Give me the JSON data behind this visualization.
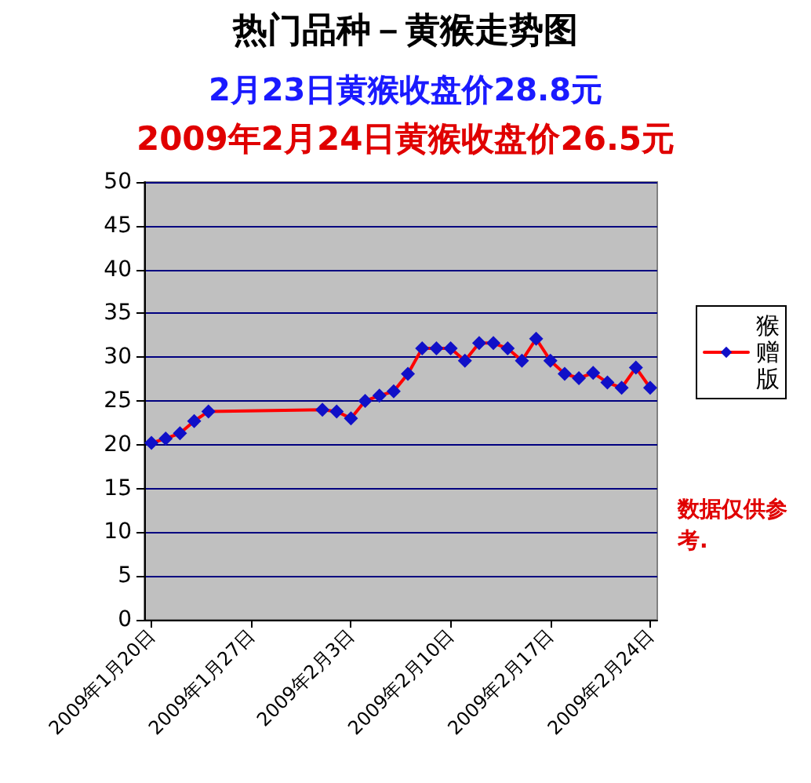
{
  "chart_data": {
    "type": "line",
    "title": "热门品种－黄猴走势图",
    "subtitle": "2月23日黄猴收盘价28.8元",
    "annotations": [
      "2009年2月24日黄猴收盘价26.5元",
      "数据仅供参考."
    ],
    "x": [
      "2009-01-20",
      "2009-01-21",
      "2009-01-22",
      "2009-01-23",
      "2009-01-24",
      "2009-02-01",
      "2009-02-02",
      "2009-02-03",
      "2009-02-04",
      "2009-02-05",
      "2009-02-06",
      "2009-02-07",
      "2009-02-08",
      "2009-02-09",
      "2009-02-10",
      "2009-02-11",
      "2009-02-12",
      "2009-02-13",
      "2009-02-14",
      "2009-02-15",
      "2009-02-16",
      "2009-02-17",
      "2009-02-18",
      "2009-02-19",
      "2009-02-20",
      "2009-02-21",
      "2009-02-22",
      "2009-02-23",
      "2009-02-24"
    ],
    "series": [
      {
        "name": "猴赠版",
        "color": "#ff0000",
        "values": [
          20.2,
          20.7,
          21.3,
          22.7,
          23.8,
          24.0,
          23.8,
          23.0,
          25.0,
          25.6,
          26.1,
          28.1,
          31.0,
          31.0,
          31.0,
          29.6,
          31.6,
          31.6,
          31.0,
          29.6,
          32.1,
          29.6,
          28.1,
          27.6,
          28.2,
          27.1,
          26.5,
          28.8,
          26.5
        ]
      }
    ],
    "xlim": [
      "2009-01-19T12:00",
      "2009-02-24T12:00"
    ],
    "xticks": [
      {
        "value": "2009-01-20",
        "label": "2009年1月20日"
      },
      {
        "value": "2009-01-27",
        "label": "2009年1月27日"
      },
      {
        "value": "2009-02-03",
        "label": "2009年2月3日"
      },
      {
        "value": "2009-02-10",
        "label": "2009年2月10日"
      },
      {
        "value": "2009-02-17",
        "label": "2009年2月17日"
      },
      {
        "value": "2009-02-24",
        "label": "2009年2月24日"
      }
    ],
    "ylim": [
      0,
      50
    ],
    "yticks": [
      0,
      5,
      10,
      15,
      20,
      25,
      30,
      35,
      40,
      45,
      50
    ],
    "grid": "y",
    "legend": "right",
    "marker": "diamond",
    "line_style": "solid"
  }
}
